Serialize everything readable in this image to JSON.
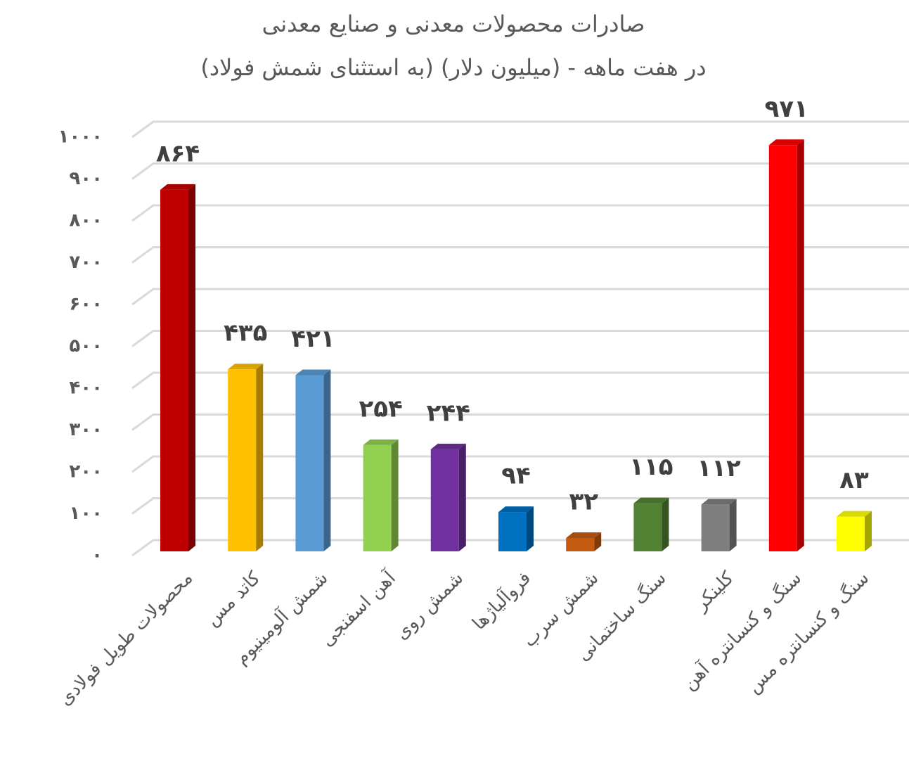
{
  "chart_data": {
    "type": "bar3d",
    "title": "صادرات محصولات معدنی و صنایع معدنی",
    "subtitle": "(به استثنای شمش فولاد) در هفت ماهه - (میلیون دلار)",
    "categories": [
      "محصولات طویل فولادی",
      "کاتد مس",
      "شمش آلومینیوم",
      "آهن اسفنجی",
      "شمش روی",
      "فروآلیاژها",
      "شمش سرب",
      "سنگ ساختمانی",
      "کلینکر",
      "سنگ و کنسانتره آهن",
      "سنگ و کنسانتره مس"
    ],
    "values": [
      864,
      435,
      421,
      254,
      244,
      94,
      32,
      115,
      112,
      971,
      83
    ],
    "value_labels": [
      "۸۶۴",
      "۴۳۵",
      "۴۲۱",
      "۲۵۴",
      "۲۴۴",
      "۹۴",
      "۳۲",
      "۱۱۵",
      "۱۱۲",
      "۹۷۱",
      "۸۳"
    ],
    "colors": [
      "#c00000",
      "#ffc000",
      "#5b9bd5",
      "#92d050",
      "#7030a0",
      "#0070c0",
      "#c55a11",
      "#548235",
      "#7f7f7f",
      "#ff0000",
      "#ffff00"
    ],
    "ylim": [
      0,
      1000
    ],
    "yticks": [
      {
        "value": 0,
        "label": "۰"
      },
      {
        "value": 100,
        "label": "۱۰۰"
      },
      {
        "value": 200,
        "label": "۲۰۰"
      },
      {
        "value": 300,
        "label": "۳۰۰"
      },
      {
        "value": 400,
        "label": "۴۰۰"
      },
      {
        "value": 500,
        "label": "۵۰۰"
      },
      {
        "value": 600,
        "label": "۶۰۰"
      },
      {
        "value": 700,
        "label": "۷۰۰"
      },
      {
        "value": 800,
        "label": "۸۰۰"
      },
      {
        "value": 900,
        "label": "۹۰۰"
      },
      {
        "value": 1000,
        "label": "۱۰۰۰"
      }
    ],
    "grid": true
  }
}
